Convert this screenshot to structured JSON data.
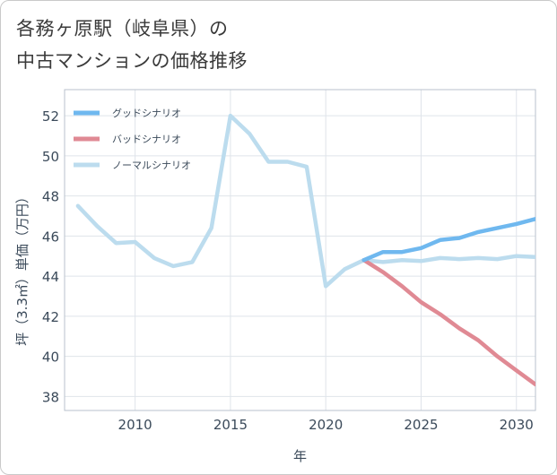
{
  "title_line1": "各務ヶ原駅（岐阜県）の",
  "title_line2": "中古マンションの価格推移",
  "chart_data": {
    "type": "line",
    "title": "各務ヶ原駅（岐阜県）の中古マンションの価格推移",
    "xlabel": "年",
    "ylabel": "坪（3.3㎡）単価（万円）",
    "xlim": [
      2006.3,
      2031
    ],
    "ylim": [
      37.3,
      53.3
    ],
    "xticks": [
      2010,
      2015,
      2020,
      2025,
      2030
    ],
    "yticks": [
      38,
      40,
      42,
      44,
      46,
      48,
      50,
      52
    ],
    "legend_position": "top-left",
    "series": [
      {
        "name": "グッドシナリオ",
        "color": "#6fb8ef",
        "x": [
          2022,
          2023,
          2024,
          2025,
          2026,
          2027,
          2028,
          2029,
          2030,
          2031
        ],
        "values": [
          44.8,
          45.2,
          45.2,
          45.4,
          45.8,
          45.9,
          46.2,
          46.4,
          46.6,
          46.85
        ]
      },
      {
        "name": "バッドシナリオ",
        "color": "#e08a94",
        "x": [
          2022,
          2023,
          2024,
          2025,
          2026,
          2027,
          2028,
          2029,
          2030,
          2031
        ],
        "values": [
          44.8,
          44.2,
          43.5,
          42.7,
          42.1,
          41.4,
          40.8,
          40.0,
          39.3,
          38.6
        ]
      },
      {
        "name": "ノーマルシナリオ",
        "color": "#bcdcee",
        "x": [
          2007,
          2008,
          2009,
          2010,
          2011,
          2012,
          2013,
          2014,
          2015,
          2016,
          2017,
          2018,
          2019,
          2020,
          2021,
          2022,
          2023,
          2024,
          2025,
          2026,
          2027,
          2028,
          2029,
          2030,
          2031
        ],
        "values": [
          47.5,
          46.5,
          45.65,
          45.7,
          44.9,
          44.5,
          44.7,
          46.4,
          52.0,
          51.1,
          49.7,
          49.7,
          49.45,
          43.5,
          44.35,
          44.8,
          44.7,
          44.8,
          44.75,
          44.9,
          44.85,
          44.9,
          44.85,
          45.0,
          44.95
        ]
      }
    ]
  }
}
